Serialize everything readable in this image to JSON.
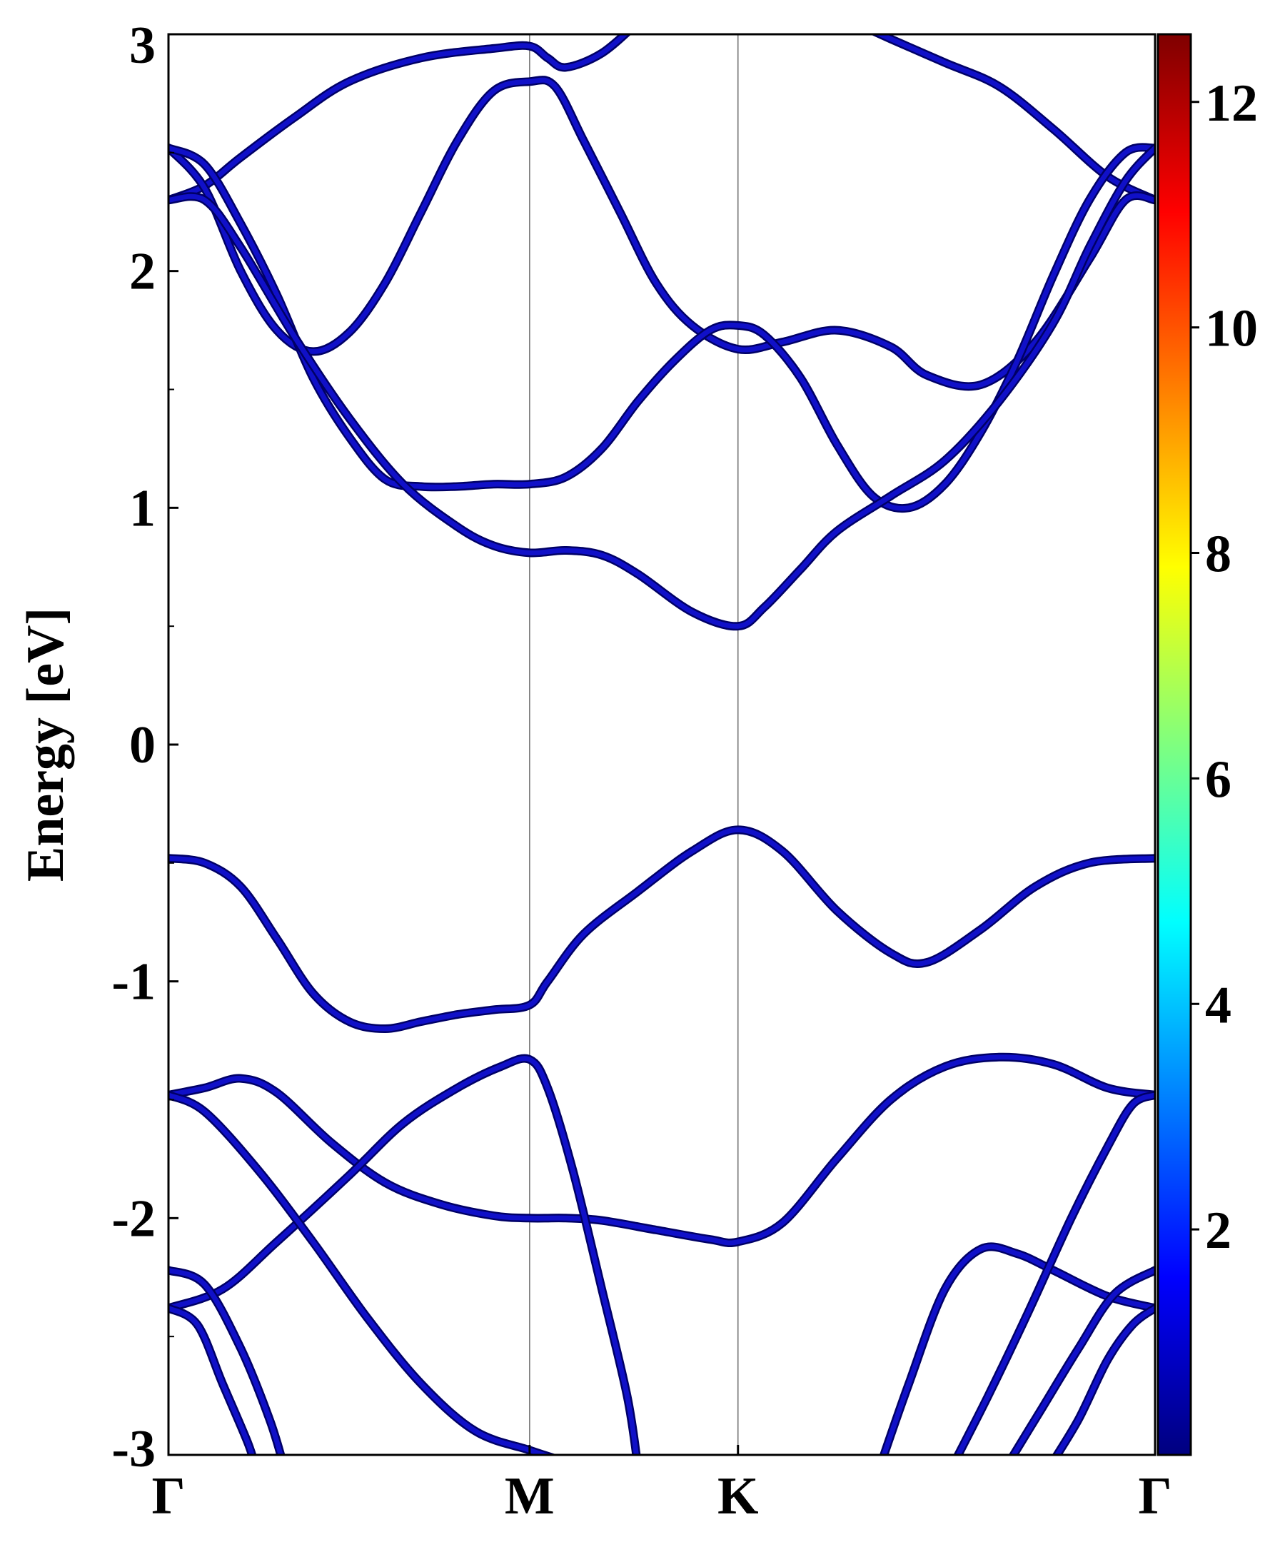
{
  "chart_data": {
    "type": "line",
    "ylabel": "Energy [eV]",
    "xlabel": "",
    "ylim": [
      -3,
      3
    ],
    "yticks": [
      {
        "value": 3,
        "label": "3"
      },
      {
        "value": 2,
        "label": "2"
      },
      {
        "value": 1,
        "label": "1"
      },
      {
        "value": 0,
        "label": "0"
      },
      {
        "value": -1,
        "label": "-1"
      },
      {
        "value": -2,
        "label": "-2"
      },
      {
        "value": -3,
        "label": "-3"
      }
    ],
    "xlim": [
      0,
      2.732
    ],
    "kpoints": [
      {
        "label": "Γ",
        "x": 0
      },
      {
        "label": "M",
        "x": 1.0
      },
      {
        "label": "K",
        "x": 1.577
      },
      {
        "label": "Γ",
        "x": 2.732
      }
    ],
    "band_color": "#1010c8",
    "band_outline_color": "#000066",
    "bands": [
      {
        "name": "",
        "points": [
          [
            0,
            -0.48
          ],
          [
            0.1,
            -0.5
          ],
          [
            0.2,
            -0.6
          ],
          [
            0.3,
            -0.82
          ],
          [
            0.4,
            -1.05
          ],
          [
            0.5,
            -1.17
          ],
          [
            0.6,
            -1.2
          ],
          [
            0.7,
            -1.17
          ],
          [
            0.8,
            -1.14
          ],
          [
            0.9,
            -1.12
          ],
          [
            1.0,
            -1.1
          ],
          [
            1.05,
            -1.0
          ],
          [
            1.15,
            -0.8
          ],
          [
            1.3,
            -0.62
          ],
          [
            1.45,
            -0.45
          ],
          [
            1.577,
            -0.36
          ],
          [
            1.7,
            -0.45
          ],
          [
            1.85,
            -0.7
          ],
          [
            2.0,
            -0.88
          ],
          [
            2.1,
            -0.92
          ],
          [
            2.25,
            -0.78
          ],
          [
            2.4,
            -0.6
          ],
          [
            2.55,
            -0.5
          ],
          [
            2.732,
            -0.48
          ]
        ]
      },
      {
        "name": "",
        "points": [
          [
            0,
            2.3
          ],
          [
            0.1,
            2.36
          ],
          [
            0.2,
            2.48
          ],
          [
            0.35,
            2.65
          ],
          [
            0.5,
            2.8
          ],
          [
            0.7,
            2.9
          ],
          [
            0.9,
            2.94
          ],
          [
            1.0,
            2.95
          ],
          [
            1.05,
            2.9
          ],
          [
            1.1,
            2.86
          ],
          [
            1.2,
            2.92
          ],
          [
            1.3,
            3.05
          ]
        ]
      },
      {
        "name": "",
        "points": [
          [
            1.9,
            3.05
          ],
          [
            2.0,
            2.98
          ],
          [
            2.15,
            2.88
          ],
          [
            2.3,
            2.78
          ],
          [
            2.45,
            2.6
          ],
          [
            2.6,
            2.4
          ],
          [
            2.732,
            2.3
          ]
        ]
      },
      {
        "name": "",
        "points": [
          [
            0,
            2.52
          ],
          [
            0.1,
            2.35
          ],
          [
            0.2,
            2.0
          ],
          [
            0.3,
            1.75
          ],
          [
            0.4,
            1.66
          ],
          [
            0.5,
            1.74
          ],
          [
            0.6,
            1.95
          ],
          [
            0.7,
            2.25
          ],
          [
            0.8,
            2.55
          ],
          [
            0.9,
            2.76
          ],
          [
            1.0,
            2.8
          ],
          [
            1.07,
            2.78
          ],
          [
            1.15,
            2.55
          ],
          [
            1.25,
            2.25
          ],
          [
            1.35,
            1.95
          ],
          [
            1.45,
            1.77
          ],
          [
            1.577,
            1.67
          ],
          [
            1.7,
            1.7
          ],
          [
            1.85,
            1.75
          ],
          [
            2.0,
            1.68
          ],
          [
            2.1,
            1.56
          ],
          [
            2.25,
            1.52
          ],
          [
            2.4,
            1.7
          ],
          [
            2.55,
            2.05
          ],
          [
            2.65,
            2.3
          ],
          [
            2.732,
            2.3
          ]
        ]
      },
      {
        "name": "",
        "points": [
          [
            0,
            2.52
          ],
          [
            0.1,
            2.45
          ],
          [
            0.2,
            2.2
          ],
          [
            0.3,
            1.9
          ],
          [
            0.4,
            1.55
          ],
          [
            0.5,
            1.3
          ],
          [
            0.6,
            1.12
          ],
          [
            0.7,
            1.09
          ],
          [
            0.8,
            1.09
          ],
          [
            0.9,
            1.1
          ],
          [
            1.0,
            1.1
          ],
          [
            1.1,
            1.13
          ],
          [
            1.2,
            1.25
          ],
          [
            1.3,
            1.45
          ],
          [
            1.4,
            1.62
          ],
          [
            1.5,
            1.75
          ],
          [
            1.577,
            1.77
          ],
          [
            1.65,
            1.73
          ],
          [
            1.75,
            1.55
          ],
          [
            1.85,
            1.27
          ],
          [
            1.95,
            1.05
          ],
          [
            2.05,
            1.0
          ],
          [
            2.15,
            1.1
          ],
          [
            2.25,
            1.32
          ],
          [
            2.35,
            1.62
          ],
          [
            2.45,
            1.98
          ],
          [
            2.55,
            2.3
          ],
          [
            2.65,
            2.5
          ],
          [
            2.732,
            2.52
          ]
        ]
      },
      {
        "name": "",
        "points": [
          [
            0,
            2.3
          ],
          [
            0.1,
            2.3
          ],
          [
            0.2,
            2.1
          ],
          [
            0.35,
            1.72
          ],
          [
            0.5,
            1.38
          ],
          [
            0.65,
            1.1
          ],
          [
            0.8,
            0.92
          ],
          [
            0.9,
            0.84
          ],
          [
            1.0,
            0.81
          ],
          [
            1.1,
            0.82
          ],
          [
            1.2,
            0.8
          ],
          [
            1.3,
            0.72
          ],
          [
            1.45,
            0.56
          ],
          [
            1.577,
            0.5
          ],
          [
            1.65,
            0.58
          ],
          [
            1.75,
            0.74
          ],
          [
            1.85,
            0.9
          ],
          [
            2.0,
            1.05
          ],
          [
            2.15,
            1.2
          ],
          [
            2.3,
            1.45
          ],
          [
            2.45,
            1.78
          ],
          [
            2.55,
            2.1
          ],
          [
            2.65,
            2.38
          ],
          [
            2.732,
            2.52
          ]
        ]
      },
      {
        "name": "",
        "points": [
          [
            0,
            -1.48
          ],
          [
            0.1,
            -1.45
          ],
          [
            0.2,
            -1.41
          ],
          [
            0.3,
            -1.47
          ],
          [
            0.45,
            -1.68
          ],
          [
            0.6,
            -1.85
          ],
          [
            0.75,
            -1.94
          ],
          [
            0.9,
            -1.99
          ],
          [
            1.0,
            -2.0
          ],
          [
            1.1,
            -2.0
          ],
          [
            1.2,
            -2.01
          ],
          [
            1.35,
            -2.05
          ],
          [
            1.5,
            -2.09
          ],
          [
            1.577,
            -2.1
          ],
          [
            1.7,
            -2.02
          ],
          [
            1.85,
            -1.75
          ],
          [
            2.0,
            -1.5
          ],
          [
            2.15,
            -1.36
          ],
          [
            2.3,
            -1.32
          ],
          [
            2.45,
            -1.35
          ],
          [
            2.6,
            -1.45
          ],
          [
            2.732,
            -1.48
          ]
        ]
      },
      {
        "name": "",
        "points": [
          [
            0,
            -2.38
          ],
          [
            0.15,
            -2.3
          ],
          [
            0.3,
            -2.1
          ],
          [
            0.5,
            -1.82
          ],
          [
            0.65,
            -1.6
          ],
          [
            0.8,
            -1.45
          ],
          [
            0.92,
            -1.36
          ],
          [
            1.0,
            -1.33
          ],
          [
            1.05,
            -1.45
          ],
          [
            1.12,
            -1.8
          ],
          [
            1.2,
            -2.3
          ],
          [
            1.27,
            -2.75
          ],
          [
            1.3,
            -3.05
          ]
        ]
      },
      {
        "name": "",
        "points": [
          [
            0,
            -1.48
          ],
          [
            0.1,
            -1.55
          ],
          [
            0.25,
            -1.8
          ],
          [
            0.4,
            -2.1
          ],
          [
            0.55,
            -2.42
          ],
          [
            0.7,
            -2.7
          ],
          [
            0.85,
            -2.9
          ],
          [
            1.0,
            -2.98
          ],
          [
            1.08,
            -3.02
          ]
        ]
      },
      {
        "name": "",
        "points": [
          [
            0,
            -2.22
          ],
          [
            0.1,
            -2.28
          ],
          [
            0.2,
            -2.55
          ],
          [
            0.28,
            -2.85
          ],
          [
            0.32,
            -3.05
          ]
        ]
      },
      {
        "name": "",
        "points": [
          [
            0,
            -2.38
          ],
          [
            0.08,
            -2.45
          ],
          [
            0.15,
            -2.7
          ],
          [
            0.22,
            -2.95
          ],
          [
            0.24,
            -3.05
          ]
        ]
      },
      {
        "name": "",
        "points": [
          [
            1.97,
            -3.05
          ],
          [
            2.05,
            -2.7
          ],
          [
            2.15,
            -2.3
          ],
          [
            2.25,
            -2.13
          ],
          [
            2.35,
            -2.15
          ],
          [
            2.45,
            -2.22
          ],
          [
            2.6,
            -2.33
          ],
          [
            2.732,
            -2.38
          ]
        ]
      },
      {
        "name": "",
        "points": [
          [
            2.17,
            -3.05
          ],
          [
            2.27,
            -2.75
          ],
          [
            2.38,
            -2.4
          ],
          [
            2.5,
            -2.0
          ],
          [
            2.6,
            -1.7
          ],
          [
            2.67,
            -1.52
          ],
          [
            2.732,
            -1.48
          ]
        ]
      },
      {
        "name": "",
        "points": [
          [
            2.32,
            -3.05
          ],
          [
            2.42,
            -2.8
          ],
          [
            2.52,
            -2.55
          ],
          [
            2.62,
            -2.32
          ],
          [
            2.732,
            -2.22
          ]
        ]
      },
      {
        "name": "",
        "points": [
          [
            2.44,
            -3.05
          ],
          [
            2.52,
            -2.85
          ],
          [
            2.6,
            -2.6
          ],
          [
            2.67,
            -2.45
          ],
          [
            2.732,
            -2.38
          ]
        ]
      }
    ],
    "colorbar": {
      "min": 0,
      "max": 12.6,
      "ticks": [
        {
          "value": 2,
          "label": "2"
        },
        {
          "value": 4,
          "label": "4"
        },
        {
          "value": 6,
          "label": "6"
        },
        {
          "value": 8,
          "label": "8"
        },
        {
          "value": 10,
          "label": "10"
        },
        {
          "value": 12,
          "label": "12"
        }
      ],
      "colormap": "jet",
      "stops": [
        "#00007f",
        "#0000ff",
        "#007fff",
        "#00ffff",
        "#7fff7f",
        "#ffff00",
        "#ff7f00",
        "#ff0000",
        "#7f0000"
      ]
    }
  }
}
